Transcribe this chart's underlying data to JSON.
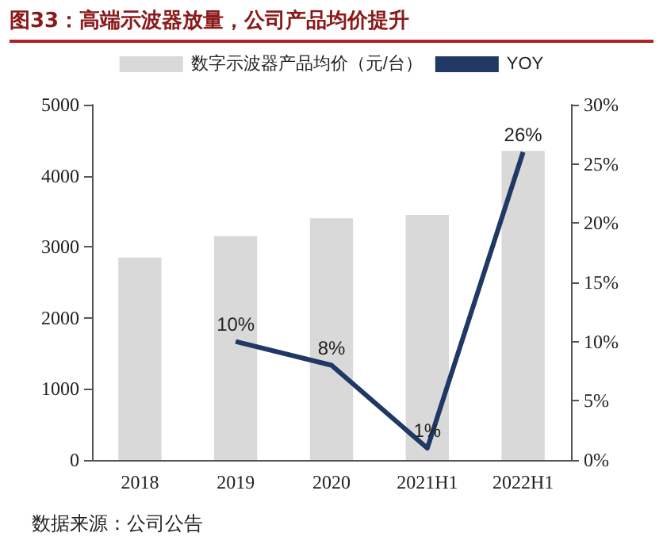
{
  "chart_data": {
    "type": "bar",
    "title": "图33：高端示波器放量，公司产品均价提升",
    "annotations": [
      "数据来源：公司公告"
    ],
    "categories": [
      "2018",
      "2019",
      "2020",
      "2021H1",
      "2022H1"
    ],
    "series": [
      {
        "name": "数字示波器产品均价（元/台）",
        "color": "#d9d9d9",
        "values": [
          2850,
          3150,
          3400,
          3450,
          4350
        ]
      },
      {
        "name": "YOY",
        "type": "line",
        "axis": "y2",
        "color": "#1f3864",
        "values": [
          null,
          10,
          8,
          1,
          26
        ],
        "marker": "none",
        "data_labels": true,
        "value_labels": [
          null,
          "10%",
          "8%",
          "1%",
          "26%"
        ]
      }
    ],
    "ylim": [
      0,
      5000
    ],
    "yticks": [
      0,
      1000,
      2000,
      3000,
      4000,
      5000
    ],
    "y2lim": [
      0,
      30
    ],
    "y2ticks": [
      {
        "value": 0,
        "label": "0%"
      },
      {
        "value": 5,
        "label": "5%"
      },
      {
        "value": 10,
        "label": "10%"
      },
      {
        "value": 15,
        "label": "15%"
      },
      {
        "value": 20,
        "label": "20%"
      },
      {
        "value": 25,
        "label": "25%"
      },
      {
        "value": 30,
        "label": "30%"
      }
    ],
    "grid": false,
    "legend": "top"
  }
}
